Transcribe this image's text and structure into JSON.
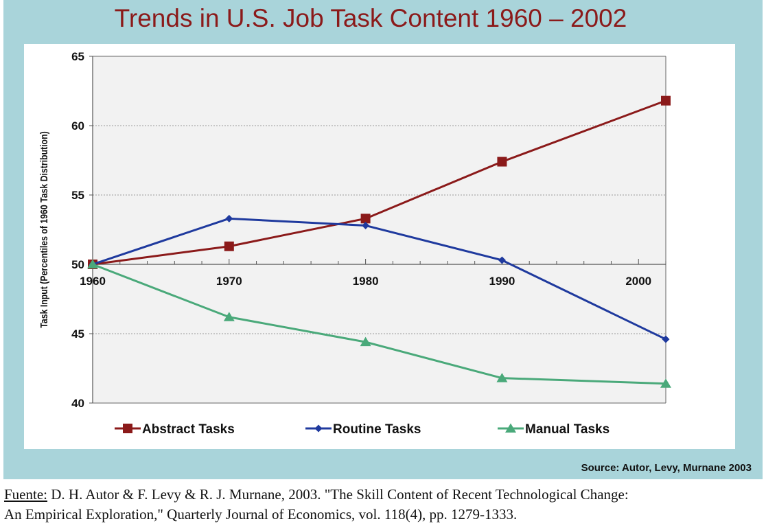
{
  "chart_data": {
    "type": "line",
    "title": "Trends in U.S. Job Task Content 1960 – 2002",
    "xlabel": "",
    "ylabel": "Task Input (Percentiles of 1960 Task Distribution)",
    "xlim": [
      1960,
      2002
    ],
    "ylim": [
      40,
      65
    ],
    "x_ticks": [
      1960,
      1970,
      1980,
      1990,
      2000
    ],
    "x_tick_labels": [
      "1960",
      "1970",
      "1980",
      "1990",
      "2000"
    ],
    "y_ticks": [
      40,
      45,
      50,
      55,
      60,
      65
    ],
    "y_tick_labels": [
      "40",
      "45",
      "50",
      "55",
      "60",
      "65"
    ],
    "x_axis_crosses_at": 50,
    "grid": "horizontal dotted",
    "legend_position": "bottom",
    "x": [
      1960,
      1970,
      1980,
      1990,
      2002
    ],
    "series": [
      {
        "name": "Abstract Tasks",
        "color": "#8b1a1a",
        "marker": "square",
        "values": [
          50.0,
          51.3,
          53.3,
          57.4,
          61.8
        ]
      },
      {
        "name": "Routine Tasks",
        "color": "#1f3a9e",
        "marker": "diamond",
        "values": [
          50.0,
          53.3,
          52.8,
          50.3,
          44.6
        ]
      },
      {
        "name": "Manual Tasks",
        "color": "#4aa97a",
        "marker": "triangle",
        "values": [
          50.0,
          46.2,
          44.4,
          41.8,
          41.4
        ]
      }
    ]
  },
  "source_note": "Source: Autor, Levy, Murnane 2003",
  "reference": {
    "lead": "Fuente:",
    "line1": " D. H. Autor & F. Levy & R. J. Murnane, 2003. \"The Skill Content of Recent Technological Change:",
    "line2": "An Empirical Exploration,\" Quarterly Journal of Economics, vol. 118(4), pp. 1279-1333."
  }
}
